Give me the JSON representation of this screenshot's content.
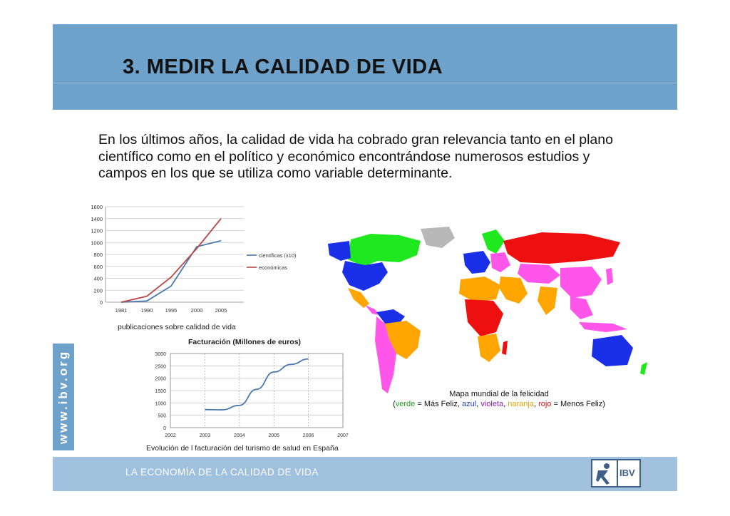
{
  "slide": {
    "title": "3. MEDIR LA CALIDAD DE VIDA",
    "intro": "En los últimos años, la calidad de vida ha cobrado gran relevancia tanto en el plano científico como en el político y económico encontrándose numerosos estudios y campos en los que se utiliza como variable determinante.",
    "side_brand": "www.ibv.org",
    "footer": "LA ECONOMÍA DE LA CALIDAD DE VIDA",
    "logo_text": "IBV"
  },
  "map": {
    "caption_line1": "Mapa mundial de la felicidad",
    "legend": {
      "open": "(",
      "verde": "verde",
      "eq1": " = Más Feliz, ",
      "azul": "azul",
      "sep1": ", ",
      "violeta": "violeta",
      "sep2": ", ",
      "naranja": "naranja",
      "sep3": ", ",
      "rojo": "rojo",
      "eq2": " = Menos Feliz)"
    }
  },
  "colors": {
    "header": "#6ea2cb",
    "footer": "#9fc1de",
    "series_blue": "#4a78b0",
    "series_red": "#b84a48",
    "green": "#1fe81f",
    "blue": "#1a2fe8",
    "violet": "#ff55e8",
    "orange": "#ffa500",
    "red": "#ee1010",
    "gray": "#b8b8b8"
  },
  "chart_data": [
    {
      "type": "line",
      "x": [
        1981,
        1990,
        1995,
        2000,
        2005
      ],
      "x_tick_labels": [
        "1981",
        "1990",
        "1995",
        "2000",
        "2005"
      ],
      "series": [
        {
          "name": "científicas (x10)",
          "values": [
            0,
            20,
            270,
            930,
            1030
          ]
        },
        {
          "name": "económicas",
          "values": [
            0,
            100,
            420,
            900,
            1400
          ]
        }
      ],
      "y_tick_labels": [
        "0",
        "200",
        "400",
        "600",
        "800",
        "1000",
        "1200",
        "1400",
        "1600"
      ],
      "ylim": [
        0,
        1600
      ],
      "xlabel": "publicaciones sobre calidad de vida",
      "grid": true,
      "legend": "right"
    },
    {
      "type": "line",
      "title": "Facturación (Millones de euros)",
      "x": [
        2003,
        2003.5,
        2004,
        2004.5,
        2005,
        2005.5,
        2006
      ],
      "x_tick_labels": [
        "2002",
        "2003",
        "2004",
        "2005",
        "2006",
        "2007"
      ],
      "series": [
        {
          "values": [
            730,
            720,
            900,
            1550,
            2250,
            2560,
            2780
          ]
        }
      ],
      "y_tick_labels": [
        "0",
        "500",
        "1000",
        "1500",
        "2000",
        "2500",
        "3000"
      ],
      "ylim": [
        0,
        3000
      ],
      "xlim": [
        2002,
        2007
      ],
      "xlabel": "Evolución de l facturación del turismo de salud en España",
      "grid": true
    }
  ]
}
